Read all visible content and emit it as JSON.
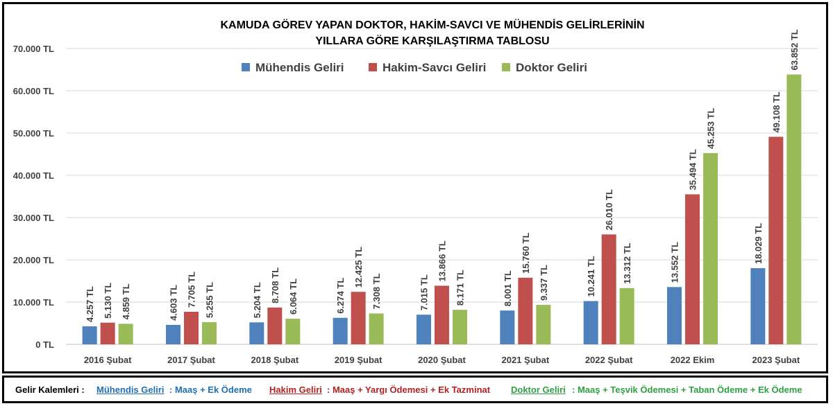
{
  "chart_data": {
    "type": "bar",
    "title_line1": "KAMUDA GÖREV YAPAN DOKTOR, HAKİM-SAVCI VE MÜHENDİS GELİRLERİNİN",
    "title_line2": "YILLARA GÖRE KARŞILAŞTIRMA TABLOSU",
    "categories": [
      "2016 Şubat",
      "2017 Şubat",
      "2018 Şubat",
      "2019 Şubat",
      "2020 Şubat",
      "2021 Şubat",
      "2022 Şubat",
      "2022 Ekim",
      "2023 Şubat"
    ],
    "series": [
      {
        "name": "Mühendis Geliri",
        "color": "#4f81bd",
        "values": [
          4257,
          4603,
          5204,
          6274,
          7015,
          8001,
          10241,
          13552,
          18029
        ],
        "labels": [
          "4.257 TL",
          "4.603 TL",
          "5.204 TL",
          "6.274 TL",
          "7.015 TL",
          "8.001 TL",
          "10.241 TL",
          "13.552 TL",
          "18.029 TL"
        ]
      },
      {
        "name": "Hakim-Savcı Geliri",
        "color": "#c0504d",
        "values": [
          5130,
          7705,
          8708,
          12425,
          13866,
          15760,
          26010,
          35494,
          49108
        ],
        "labels": [
          "5.130 TL",
          "7.705 TL",
          "8.708 TL",
          "12.425 TL",
          "13.866 TL",
          "15.760 TL",
          "26.010 TL",
          "35.494 TL",
          "49.108 TL"
        ]
      },
      {
        "name": "Doktor Geliri",
        "color": "#9bbb59",
        "values": [
          4859,
          5255,
          6064,
          7308,
          8171,
          9337,
          13312,
          45253,
          63852
        ],
        "labels": [
          "4.859 TL",
          "5.255 TL",
          "6.064 TL",
          "7.308 TL",
          "8.171 TL",
          "9.337 TL",
          "13.312 TL",
          "45.253 TL",
          "63.852 TL"
        ]
      }
    ],
    "yticks": [
      "0 TL",
      "10.000 TL",
      "20.000 TL",
      "30.000 TL",
      "40.000 TL",
      "50.000 TL",
      "60.000 TL",
      "70.000 TL"
    ],
    "ylim": [
      0,
      70000
    ],
    "grid": true,
    "legend_position": "top-center"
  },
  "footer": {
    "prefix": "Gelir Kalemleri :",
    "engineer_name": "Mühendis Geliri",
    "engineer_items": ": Maaş + Ek Ödeme",
    "judge_name": "Hakim Geliri",
    "judge_items": ": Maaş + Yargı Ödemesi + Ek Tazminat",
    "doctor_name": "Doktor Geliri",
    "doctor_items": ": Maaş + Teşvik Ödemesi + Taban Ödeme + Ek Ödeme",
    "colors": {
      "engineer": "#1f6fb2",
      "judge": "#b22222",
      "doctor": "#2ea043"
    }
  }
}
